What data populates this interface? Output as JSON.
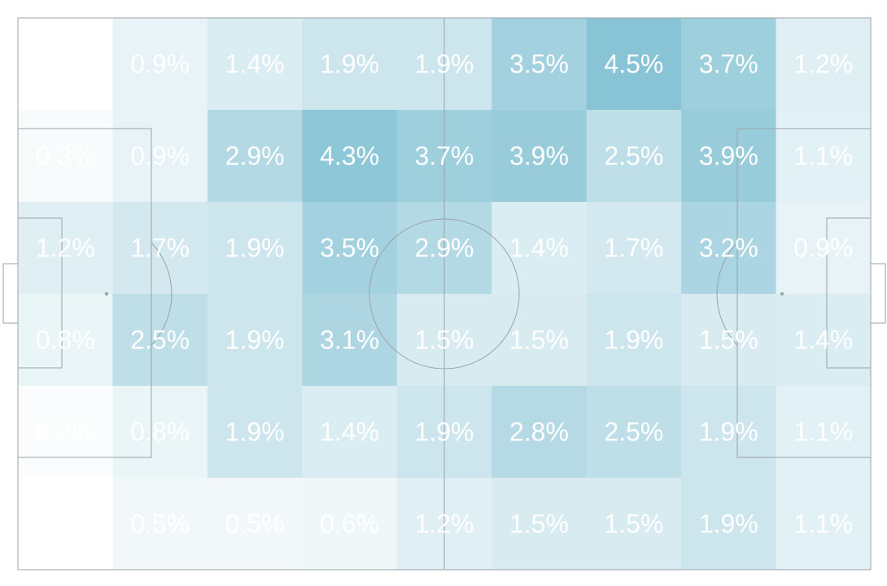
{
  "chart_data": {
    "type": "heatmap",
    "title": "",
    "xlabel": "",
    "ylabel": "",
    "grid": false,
    "cols": 9,
    "rows": 6,
    "color_scale": {
      "low": "#ffffff",
      "high": "#7fbfd2",
      "max_value": 4.5,
      "max_alpha": 0.92
    },
    "cells": [
      [
        "",
        "0.9%",
        "1.4%",
        "1.9%",
        "1.9%",
        "3.5%",
        "4.5%",
        "3.7%",
        "1.2%"
      ],
      [
        "0.3%",
        "0.9%",
        "2.9%",
        "4.3%",
        "3.7%",
        "3.9%",
        "2.5%",
        "3.9%",
        "1.1%"
      ],
      [
        "1.2%",
        "1.7%",
        "1.9%",
        "3.5%",
        "2.9%",
        "1.4%",
        "1.7%",
        "3.2%",
        "0.9%"
      ],
      [
        "0.8%",
        "2.5%",
        "1.9%",
        "3.1%",
        "1.5%",
        "1.5%",
        "1.9%",
        "1.5%",
        "1.4%"
      ],
      [
        "0.2%",
        "0.8%",
        "1.9%",
        "1.4%",
        "1.9%",
        "2.8%",
        "2.5%",
        "1.9%",
        "1.1%"
      ],
      [
        "",
        "0.5%",
        "0.5%",
        "0.6%",
        "1.2%",
        "1.5%",
        "1.5%",
        "1.9%",
        "1.1%"
      ]
    ],
    "values": [
      [
        0,
        0.9,
        1.4,
        1.9,
        1.9,
        3.5,
        4.5,
        3.7,
        1.2
      ],
      [
        0.3,
        0.9,
        2.9,
        4.3,
        3.7,
        3.9,
        2.5,
        3.9,
        1.1
      ],
      [
        1.2,
        1.7,
        1.9,
        3.5,
        2.9,
        1.4,
        1.7,
        3.2,
        0.9
      ],
      [
        0.8,
        2.5,
        1.9,
        3.1,
        1.5,
        1.5,
        1.9,
        1.5,
        1.4
      ],
      [
        0.2,
        0.8,
        1.9,
        1.4,
        1.9,
        2.8,
        2.5,
        1.9,
        1.1
      ],
      [
        0,
        0.5,
        0.5,
        0.6,
        1.2,
        1.5,
        1.5,
        1.9,
        1.1
      ]
    ]
  },
  "colors": {
    "pitch_lines": "#9aa3a7",
    "label_text": "#ffffff"
  }
}
